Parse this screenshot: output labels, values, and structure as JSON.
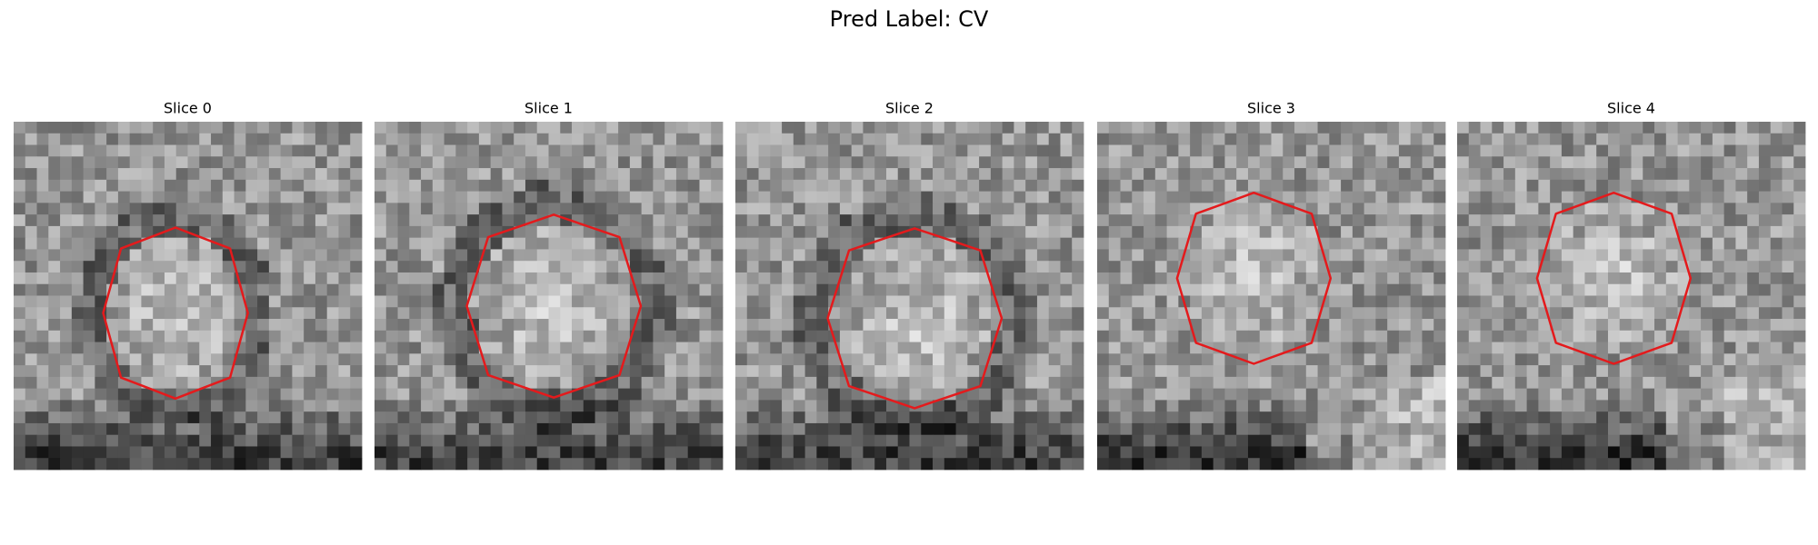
{
  "figure": {
    "title": "Pred Label: CV",
    "panels": [
      {
        "title": "Slice 0"
      },
      {
        "title": "Slice 1"
      },
      {
        "title": "Slice 2"
      },
      {
        "title": "Slice 3"
      },
      {
        "title": "Slice 4"
      }
    ]
  }
}
